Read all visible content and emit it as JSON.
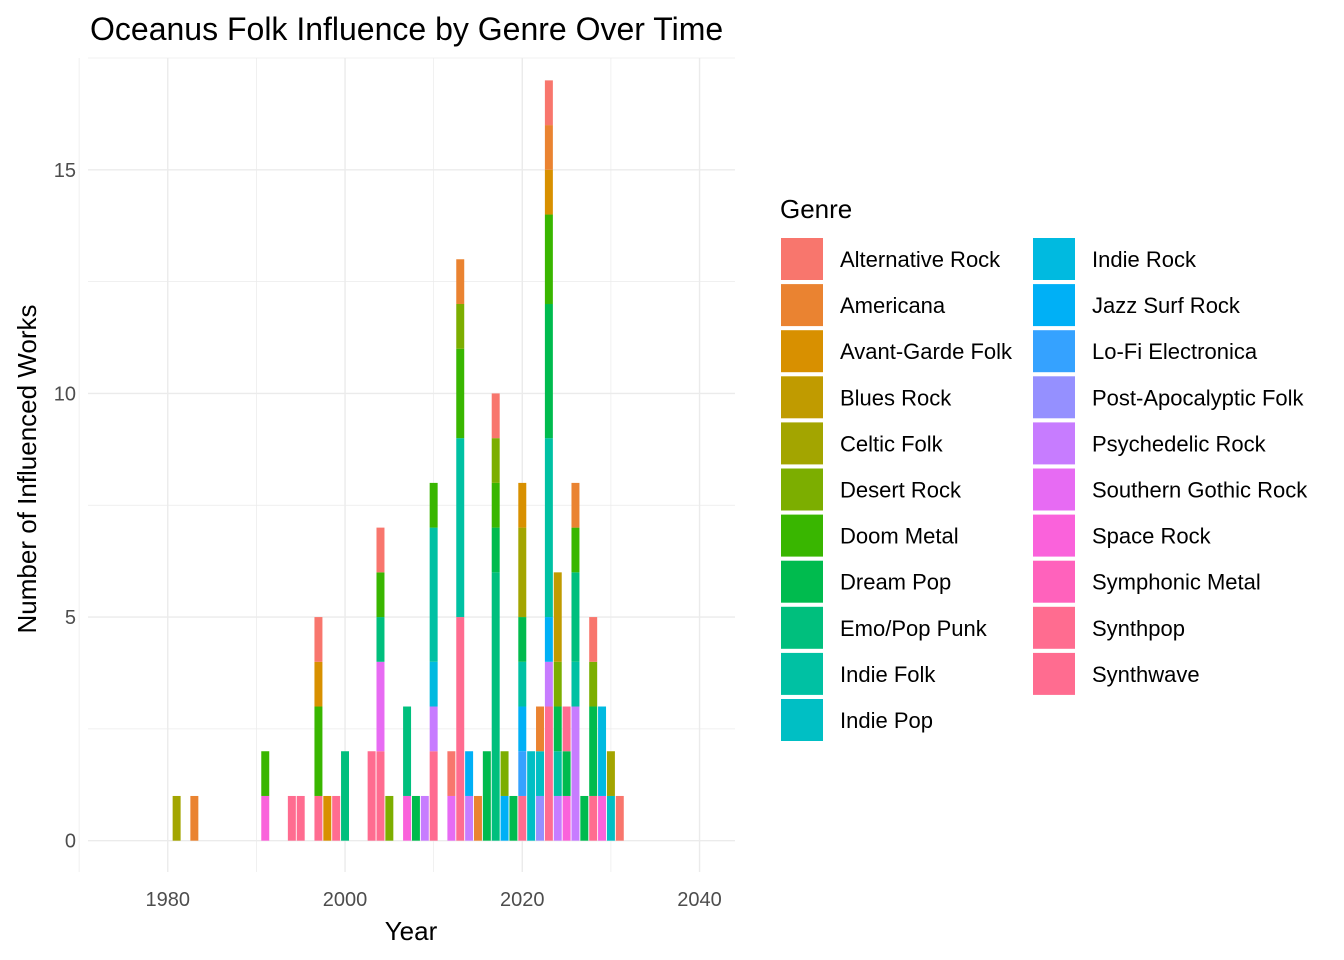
{
  "chart_data": {
    "type": "bar",
    "stacked": true,
    "title": "Oceanus Folk Influence by Genre Over Time",
    "xlabel": "Year",
    "ylabel": "Number of Influenced Works",
    "xlim": [
      1971,
      2044
    ],
    "ylim": [
      -0.7,
      17.5
    ],
    "xticks": [
      1980,
      2000,
      2020,
      2040
    ],
    "yticks": [
      0,
      5,
      10,
      15
    ],
    "grid": true,
    "legend": {
      "title": "Genre",
      "position": "right",
      "columns": 2
    },
    "genres": [
      {
        "name": "Alternative Rock",
        "color": "#F8766D"
      },
      {
        "name": "Americana",
        "color": "#EA8331"
      },
      {
        "name": "Avant-Garde Folk",
        "color": "#D89000"
      },
      {
        "name": "Blues Rock",
        "color": "#C09B00"
      },
      {
        "name": "Celtic Folk",
        "color": "#A3A500"
      },
      {
        "name": "Desert Rock",
        "color": "#7CAE00"
      },
      {
        "name": "Doom Metal",
        "color": "#39B600"
      },
      {
        "name": "Dream Pop",
        "color": "#00BB4E"
      },
      {
        "name": "Emo/Pop Punk",
        "color": "#00BF7D"
      },
      {
        "name": "Indie Folk",
        "color": "#00C1A3"
      },
      {
        "name": "Indie Pop",
        "color": "#00BFC4"
      },
      {
        "name": "Indie Rock",
        "color": "#00BAE0"
      },
      {
        "name": "Jazz Surf Rock",
        "color": "#00B0F6"
      },
      {
        "name": "Lo-Fi Electronica",
        "color": "#35A2FF"
      },
      {
        "name": "Post-Apocalyptic Folk",
        "color": "#9590FF"
      },
      {
        "name": "Psychedelic Rock",
        "color": "#C77CFF"
      },
      {
        "name": "Southern Gothic Rock",
        "color": "#E76BF3"
      },
      {
        "name": "Space Rock",
        "color": "#FA62DB"
      },
      {
        "name": "Symphonic Metal",
        "color": "#FF62BC"
      },
      {
        "name": "Synthpop",
        "color": "#FF6C90"
      },
      {
        "name": "Synthwave",
        "color": "#FF6C90"
      }
    ],
    "data": [
      {
        "year": 1981,
        "stack": [
          {
            "genre": "Celtic Folk",
            "value": 1
          }
        ]
      },
      {
        "year": 1983,
        "stack": [
          {
            "genre": "Americana",
            "value": 1
          }
        ]
      },
      {
        "year": 1991,
        "stack": [
          {
            "genre": "Space Rock",
            "value": 1
          },
          {
            "genre": "Doom Metal",
            "value": 1
          }
        ]
      },
      {
        "year": 1994,
        "stack": [
          {
            "genre": "Synthwave",
            "value": 1
          }
        ]
      },
      {
        "year": 1995,
        "stack": [
          {
            "genre": "Synthwave",
            "value": 1
          }
        ]
      },
      {
        "year": 1997,
        "stack": [
          {
            "genre": "Synthwave",
            "value": 1
          },
          {
            "genre": "Doom Metal",
            "value": 2
          },
          {
            "genre": "Avant-Garde Folk",
            "value": 1
          },
          {
            "genre": "Alternative Rock",
            "value": 1
          }
        ]
      },
      {
        "year": 1998,
        "stack": [
          {
            "genre": "Avant-Garde Folk",
            "value": 1
          }
        ]
      },
      {
        "year": 1999,
        "stack": [
          {
            "genre": "Synthwave",
            "value": 1
          }
        ]
      },
      {
        "year": 2000,
        "stack": [
          {
            "genre": "Emo/Pop Punk",
            "value": 2
          }
        ]
      },
      {
        "year": 2003,
        "stack": [
          {
            "genre": "Synthwave",
            "value": 2
          }
        ]
      },
      {
        "year": 2004,
        "stack": [
          {
            "genre": "Synthwave",
            "value": 2
          },
          {
            "genre": "Southern Gothic Rock",
            "value": 2
          },
          {
            "genre": "Emo/Pop Punk",
            "value": 1
          },
          {
            "genre": "Doom Metal",
            "value": 1
          },
          {
            "genre": "Alternative Rock",
            "value": 1
          }
        ]
      },
      {
        "year": 2005,
        "stack": [
          {
            "genre": "Desert Rock",
            "value": 1
          }
        ]
      },
      {
        "year": 2007,
        "stack": [
          {
            "genre": "Space Rock",
            "value": 1
          },
          {
            "genre": "Emo/Pop Punk",
            "value": 2
          }
        ]
      },
      {
        "year": 2008,
        "stack": [
          {
            "genre": "Dream Pop",
            "value": 1
          }
        ]
      },
      {
        "year": 2009,
        "stack": [
          {
            "genre": "Psychedelic Rock",
            "value": 1
          }
        ]
      },
      {
        "year": 2010,
        "stack": [
          {
            "genre": "Synthpop",
            "value": 2
          },
          {
            "genre": "Psychedelic Rock",
            "value": 1
          },
          {
            "genre": "Indie Rock",
            "value": 1
          },
          {
            "genre": "Indie Folk",
            "value": 3
          },
          {
            "genre": "Doom Metal",
            "value": 1
          }
        ]
      },
      {
        "year": 2012,
        "stack": [
          {
            "genre": "Southern Gothic Rock",
            "value": 1
          },
          {
            "genre": "Alternative Rock",
            "value": 1
          }
        ]
      },
      {
        "year": 2013,
        "stack": [
          {
            "genre": "Synthpop",
            "value": 5
          },
          {
            "genre": "Indie Folk",
            "value": 4
          },
          {
            "genre": "Doom Metal",
            "value": 2
          },
          {
            "genre": "Desert Rock",
            "value": 1
          },
          {
            "genre": "Americana",
            "value": 1
          }
        ]
      },
      {
        "year": 2014,
        "stack": [
          {
            "genre": "Psychedelic Rock",
            "value": 1
          },
          {
            "genre": "Jazz Surf Rock",
            "value": 1
          }
        ]
      },
      {
        "year": 2015,
        "stack": [
          {
            "genre": "Americana",
            "value": 1
          }
        ]
      },
      {
        "year": 2016,
        "stack": [
          {
            "genre": "Dream Pop",
            "value": 2
          }
        ]
      },
      {
        "year": 2017,
        "stack": [
          {
            "genre": "Emo/Pop Punk",
            "value": 6
          },
          {
            "genre": "Dream Pop",
            "value": 1
          },
          {
            "genre": "Doom Metal",
            "value": 1
          },
          {
            "genre": "Desert Rock",
            "value": 1
          },
          {
            "genre": "Alternative Rock",
            "value": 1
          }
        ]
      },
      {
        "year": 2018,
        "stack": [
          {
            "genre": "Jazz Surf Rock",
            "value": 1
          },
          {
            "genre": "Desert Rock",
            "value": 1
          }
        ]
      },
      {
        "year": 2019,
        "stack": [
          {
            "genre": "Dream Pop",
            "value": 1
          }
        ]
      },
      {
        "year": 2020,
        "stack": [
          {
            "genre": "Synthpop",
            "value": 1
          },
          {
            "genre": "Lo-Fi Electronica",
            "value": 1
          },
          {
            "genre": "Jazz Surf Rock",
            "value": 1
          },
          {
            "genre": "Indie Folk",
            "value": 1
          },
          {
            "genre": "Dream Pop",
            "value": 1
          },
          {
            "genre": "Celtic Folk",
            "value": 2
          },
          {
            "genre": "Avant-Garde Folk",
            "value": 1
          }
        ]
      },
      {
        "year": 2021,
        "stack": [
          {
            "genre": "Indie Pop",
            "value": 2
          }
        ]
      },
      {
        "year": 2022,
        "stack": [
          {
            "genre": "Post-Apocalyptic Folk",
            "value": 1
          },
          {
            "genre": "Indie Pop",
            "value": 1
          },
          {
            "genre": "Americana",
            "value": 1
          }
        ]
      },
      {
        "year": 2023,
        "stack": [
          {
            "genre": "Synthpop",
            "value": 3
          },
          {
            "genre": "Psychedelic Rock",
            "value": 1
          },
          {
            "genre": "Jazz Surf Rock",
            "value": 1
          },
          {
            "genre": "Indie Folk",
            "value": 4
          },
          {
            "genre": "Dream Pop",
            "value": 3
          },
          {
            "genre": "Doom Metal",
            "value": 2
          },
          {
            "genre": "Avant-Garde Folk",
            "value": 1
          },
          {
            "genre": "Americana",
            "value": 1
          },
          {
            "genre": "Alternative Rock",
            "value": 1
          }
        ]
      },
      {
        "year": 2024,
        "stack": [
          {
            "genre": "Psychedelic Rock",
            "value": 1
          },
          {
            "genre": "Indie Folk",
            "value": 1
          },
          {
            "genre": "Dream Pop",
            "value": 1
          },
          {
            "genre": "Desert Rock",
            "value": 1
          },
          {
            "genre": "Blues Rock",
            "value": 2
          }
        ]
      },
      {
        "year": 2025,
        "stack": [
          {
            "genre": "Space Rock",
            "value": 1
          },
          {
            "genre": "Dream Pop",
            "value": 1
          },
          {
            "genre": "Synthwave",
            "value": 1
          }
        ]
      },
      {
        "year": 2026,
        "stack": [
          {
            "genre": "Psychedelic Rock",
            "value": 3
          },
          {
            "genre": "Indie Folk",
            "value": 1
          },
          {
            "genre": "Emo/Pop Punk",
            "value": 2
          },
          {
            "genre": "Doom Metal",
            "value": 1
          },
          {
            "genre": "Americana",
            "value": 1
          }
        ]
      },
      {
        "year": 2027,
        "stack": [
          {
            "genre": "Dream Pop",
            "value": 1
          }
        ]
      },
      {
        "year": 2028,
        "stack": [
          {
            "genre": "Synthwave",
            "value": 1
          },
          {
            "genre": "Dream Pop",
            "value": 2
          },
          {
            "genre": "Desert Rock",
            "value": 1
          },
          {
            "genre": "Alternative Rock",
            "value": 1
          }
        ]
      },
      {
        "year": 2029,
        "stack": [
          {
            "genre": "Space Rock",
            "value": 1
          },
          {
            "genre": "Indie Rock",
            "value": 2
          }
        ]
      },
      {
        "year": 2030,
        "stack": [
          {
            "genre": "Indie Pop",
            "value": 1
          },
          {
            "genre": "Celtic Folk",
            "value": 1
          }
        ]
      },
      {
        "year": 2031,
        "stack": [
          {
            "genre": "Alternative Rock",
            "value": 1
          }
        ]
      }
    ]
  }
}
